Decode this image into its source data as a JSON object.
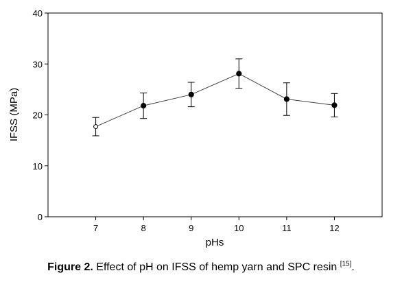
{
  "chart_data": {
    "type": "line",
    "xlabel": "pHs",
    "ylabel": "IFSS (MPa)",
    "xlim": [
      6.0,
      13.0
    ],
    "ylim": [
      0,
      40
    ],
    "x_ticks": [
      "7",
      "8",
      "9",
      "10",
      "11",
      "12"
    ],
    "y_ticks": [
      "0",
      "10",
      "20",
      "30",
      "40"
    ],
    "grid": false,
    "legend": "none",
    "series": [
      {
        "x": [
          7,
          8,
          9,
          10,
          11,
          12
        ],
        "values": [
          17.7,
          21.8,
          24.0,
          28.1,
          23.1,
          21.9
        ],
        "error": [
          1.8,
          2.5,
          2.4,
          2.9,
          3.2,
          2.3
        ]
      }
    ],
    "marker_first_open": true,
    "line_color": "#444444",
    "marker_color": "#000000"
  },
  "caption": {
    "label": "Figure 2.",
    "text": " Effect of pH on IFSS of hemp yarn and SPC resin ",
    "ref": "[15]",
    "end": "."
  }
}
